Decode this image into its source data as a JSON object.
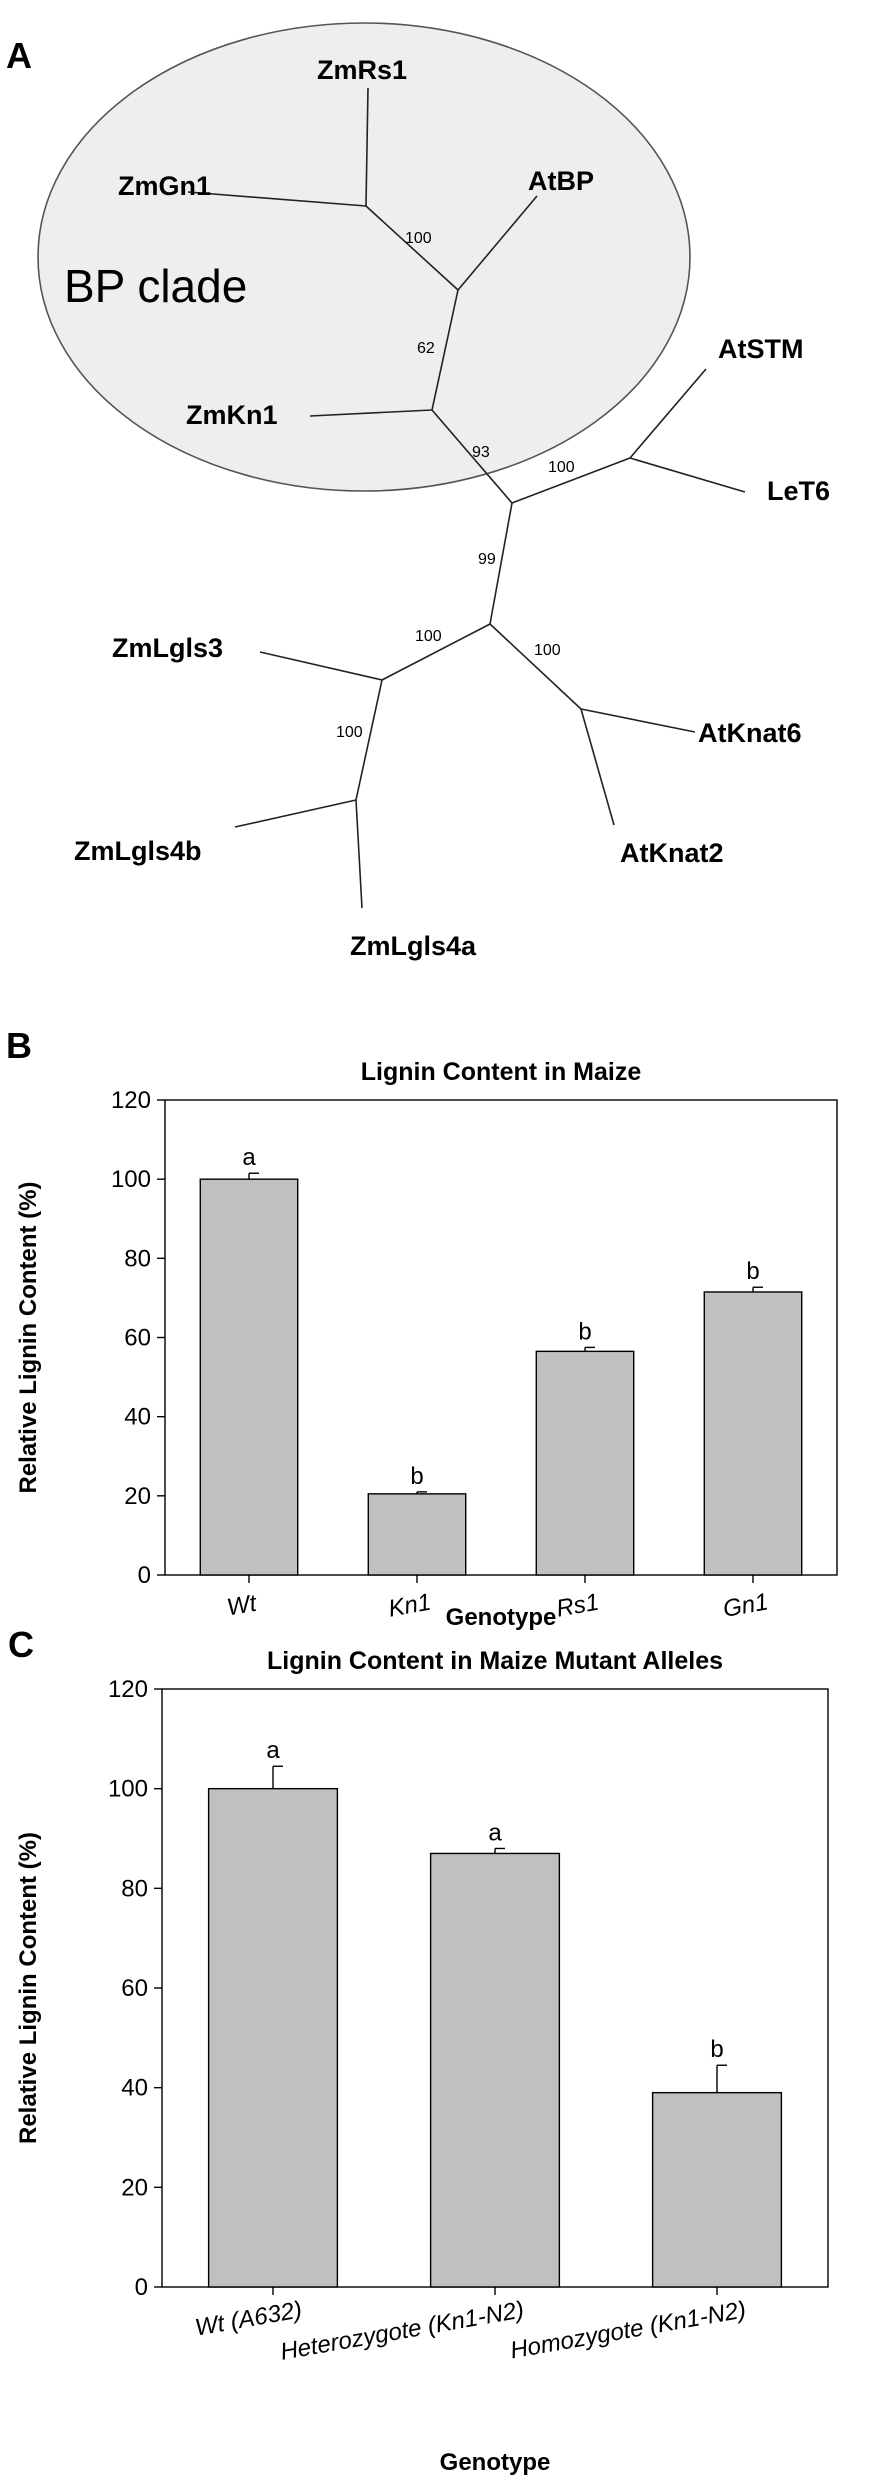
{
  "panel_a": {
    "letter": "A",
    "clade_label": "BP clade",
    "leaves": [
      "ZmRs1",
      "ZmGn1",
      "AtBP",
      "ZmKn1",
      "AtSTM",
      "LeT6",
      "ZmLgls3",
      "AtKnat6",
      "ZmLgls4b",
      "AtKnat2",
      "ZmLgls4a"
    ],
    "bootstraps": [
      "100",
      "62",
      "93",
      "100",
      "99",
      "100",
      "100",
      "100"
    ]
  },
  "chart_data": [
    {
      "panel": "B",
      "type": "bar",
      "title": "Lignin Content in Maize",
      "xlabel": "Genotype",
      "ylabel": "Relative Lignin Content (%)",
      "categories": [
        "Wt",
        "Kn1",
        "Rs1",
        "Gn1"
      ],
      "values": [
        100,
        20.5,
        56.5,
        71.5
      ],
      "errors": [
        1.5,
        0.5,
        1.0,
        1.2
      ],
      "significance": [
        "a",
        "b",
        "b",
        "b"
      ],
      "ylim": [
        0,
        120
      ],
      "yticks": [
        "0",
        "20",
        "40",
        "60",
        "80",
        "100",
        "120"
      ],
      "bar_color": "#c0c0c0"
    },
    {
      "panel": "C",
      "type": "bar",
      "title": "Lignin Content in Maize Mutant Alleles",
      "xlabel": "Genotype",
      "ylabel": "Relative Lignin Content (%)",
      "categories": [
        "Wt (A632)",
        "Heterozygote (Kn1-N2)",
        "Homozygote (Kn1-N2)"
      ],
      "values": [
        100,
        87,
        39
      ],
      "errors": [
        4.5,
        1.0,
        5.5
      ],
      "significance": [
        "a",
        "a",
        "b"
      ],
      "ylim": [
        0,
        120
      ],
      "yticks": [
        "0",
        "20",
        "40",
        "60",
        "80",
        "100",
        "120"
      ],
      "bar_color": "#c0c0c0"
    }
  ]
}
